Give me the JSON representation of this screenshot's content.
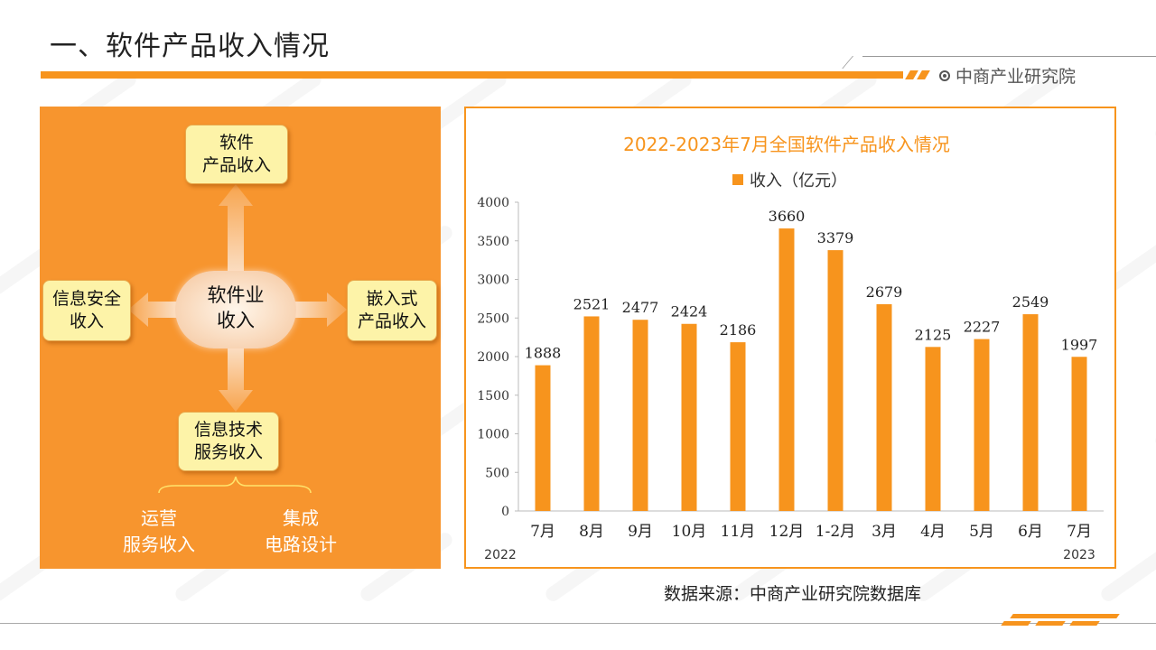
{
  "header": {
    "title": "一、软件产品收入情况",
    "brand": "中商产业研究院"
  },
  "diagram": {
    "center": [
      "软件业",
      "收入"
    ],
    "top": [
      "软件",
      "产品收入"
    ],
    "left": [
      "信息安全",
      "收入"
    ],
    "right": [
      "嵌入式",
      "产品收入"
    ],
    "bottom": [
      "信息技术",
      "服务收入"
    ],
    "sub_left": [
      "运营",
      "服务收入"
    ],
    "sub_right": [
      "集成",
      "电路设计"
    ]
  },
  "chart_data": {
    "type": "bar",
    "title": "2022-2023年7月全国软件产品收入情况",
    "legend": "收入（亿元）",
    "categories": [
      "7月",
      "8月",
      "9月",
      "10月",
      "11月",
      "12月",
      "1-2月",
      "3月",
      "4月",
      "5月",
      "6月",
      "7月"
    ],
    "values": [
      1888,
      2521,
      2477,
      2424,
      2186,
      3660,
      3379,
      2679,
      2125,
      2227,
      2549,
      1997
    ],
    "ylim": [
      0,
      4000
    ],
    "yticks": [
      0,
      500,
      1000,
      1500,
      2000,
      2500,
      3000,
      3500,
      4000
    ],
    "year_labels": {
      "start": "2022",
      "end": "2023"
    },
    "grid": false,
    "legend_position": "top",
    "bar_color": "#F7941D"
  },
  "source": "数据来源：中商产业研究院数据库"
}
